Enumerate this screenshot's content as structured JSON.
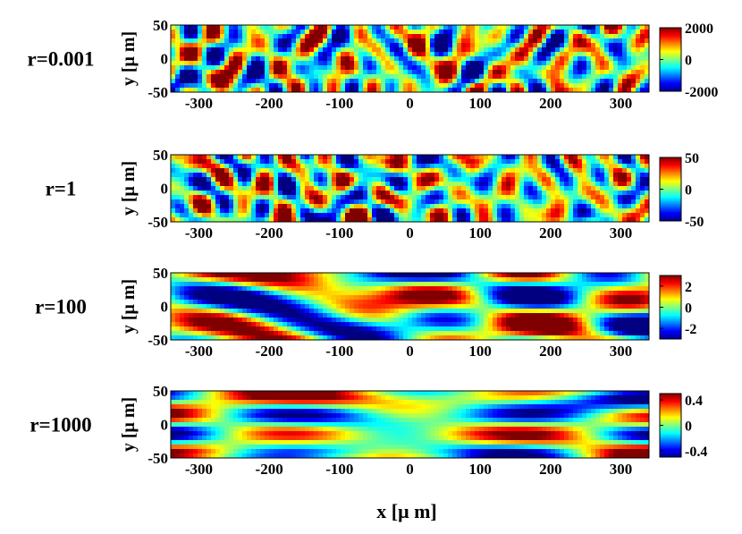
{
  "chart_data": [
    {
      "type": "heatmap",
      "label": "r=0.001",
      "xlabel": "x [μ m]",
      "ylabel": "y [μ m]",
      "xticks": [
        -300,
        -200,
        -100,
        0,
        100,
        200,
        300
      ],
      "yticks": [
        50,
        0,
        -50
      ],
      "xlim": [
        -340,
        340
      ],
      "ylim": [
        -50,
        50
      ],
      "colorbar": {
        "ticks": [
          2000,
          0,
          -2000
        ],
        "range": [
          -2000,
          2000
        ]
      },
      "pattern": "isotropic"
    },
    {
      "type": "heatmap",
      "label": "r=1",
      "xlabel": "x [μ m]",
      "ylabel": "y [μ m]",
      "xticks": [
        -300,
        -200,
        -100,
        0,
        100,
        200,
        300
      ],
      "yticks": [
        50,
        0,
        -50
      ],
      "xlim": [
        -340,
        340
      ],
      "ylim": [
        -50,
        50
      ],
      "colorbar": {
        "ticks": [
          50,
          0,
          -50
        ],
        "range": [
          -50,
          50
        ]
      },
      "pattern": "isotropic"
    },
    {
      "type": "heatmap",
      "label": "r=100",
      "xlabel": "x [μ m]",
      "ylabel": "y [μ m]",
      "xticks": [
        -300,
        -200,
        -100,
        0,
        100,
        200,
        300
      ],
      "yticks": [
        50,
        0,
        -50
      ],
      "xlim": [
        -340,
        340
      ],
      "ylim": [
        -50,
        50
      ],
      "colorbar": {
        "ticks": [
          2,
          0,
          -2
        ],
        "range": [
          -3,
          3
        ]
      },
      "pattern": "elongated"
    },
    {
      "type": "heatmap",
      "label": "r=1000",
      "xlabel": "x [μ m]",
      "ylabel": "y [μ m]",
      "xticks": [
        -300,
        -200,
        -100,
        0,
        100,
        200,
        300
      ],
      "yticks": [
        50,
        0,
        -50
      ],
      "xlim": [
        -340,
        340
      ],
      "ylim": [
        -50,
        50
      ],
      "colorbar": {
        "ticks": [
          0.4,
          0,
          -0.4
        ],
        "range": [
          -0.5,
          0.5
        ]
      },
      "pattern": "streaks"
    }
  ],
  "figure": {
    "shared_xlabel": "x [μ m]"
  }
}
